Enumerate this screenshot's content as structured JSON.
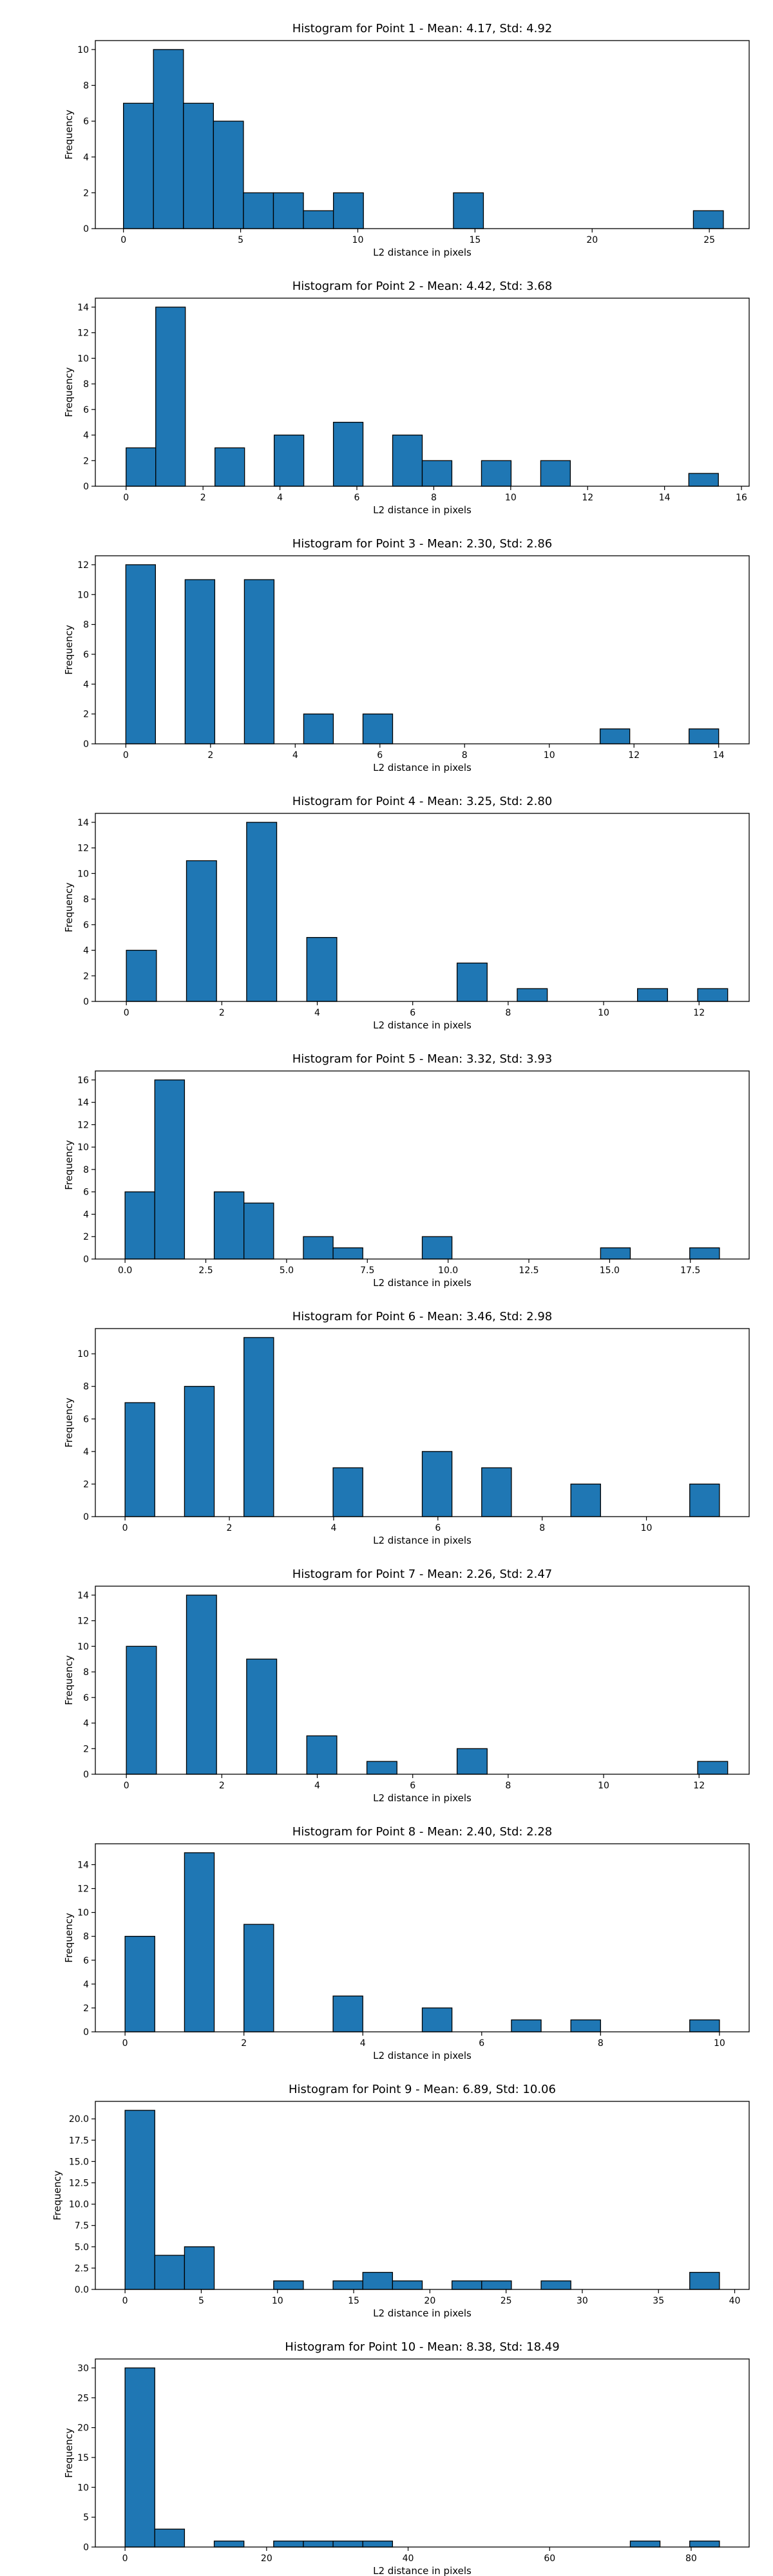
{
  "chart_data": [
    {
      "type": "bar",
      "title": "Histogram for Point 1 - Mean: 4.17, Std: 4.92",
      "xlabel": "L2 distance in pixels",
      "ylabel": "Frequency",
      "xlim": [
        -1.2,
        26.7
      ],
      "ylim": [
        0,
        10.5
      ],
      "xticks": [
        0,
        5,
        10,
        15,
        20,
        25
      ],
      "xtick_labels": [
        "0",
        "5",
        "10",
        "15",
        "20",
        "25"
      ],
      "yticks": [
        0,
        2,
        4,
        6,
        8,
        10
      ],
      "ytick_labels": [
        "0",
        "2",
        "4",
        "6",
        "8",
        "10"
      ],
      "bins": [
        [
          0,
          1.28,
          7
        ],
        [
          1.28,
          2.56,
          10
        ],
        [
          2.56,
          3.84,
          7
        ],
        [
          3.84,
          5.12,
          6
        ],
        [
          5.12,
          6.4,
          2
        ],
        [
          6.4,
          7.68,
          2
        ],
        [
          7.68,
          8.96,
          1
        ],
        [
          8.96,
          10.24,
          2
        ],
        [
          14.08,
          15.36,
          2
        ],
        [
          24.32,
          25.6,
          1
        ]
      ]
    },
    {
      "type": "bar",
      "title": "Histogram for Point 2 - Mean: 4.42, Std: 3.68",
      "xlabel": "L2 distance in pixels",
      "ylabel": "Frequency",
      "xlim": [
        -0.8,
        16.2
      ],
      "ylim": [
        0,
        14.7
      ],
      "xticks": [
        0,
        2,
        4,
        6,
        8,
        10,
        12,
        14,
        16
      ],
      "xtick_labels": [
        "0",
        "2",
        "4",
        "6",
        "8",
        "10",
        "12",
        "14",
        "16"
      ],
      "yticks": [
        0,
        2,
        4,
        6,
        8,
        10,
        12,
        14
      ],
      "ytick_labels": [
        "0",
        "2",
        "4",
        "6",
        "8",
        "10",
        "12",
        "14"
      ],
      "bins": [
        [
          0,
          0.77,
          3
        ],
        [
          0.77,
          1.54,
          14
        ],
        [
          2.31,
          3.08,
          3
        ],
        [
          3.85,
          4.62,
          4
        ],
        [
          5.39,
          6.16,
          5
        ],
        [
          6.93,
          7.7,
          4
        ],
        [
          7.7,
          8.47,
          2
        ],
        [
          9.24,
          10.01,
          2
        ],
        [
          10.78,
          11.55,
          2
        ],
        [
          14.63,
          15.4,
          1
        ]
      ]
    },
    {
      "type": "bar",
      "title": "Histogram for Point 3 - Mean: 2.30, Std: 2.86",
      "xlabel": "L2 distance in pixels",
      "ylabel": "Frequency",
      "xlim": [
        -0.72,
        14.72
      ],
      "ylim": [
        0,
        12.6
      ],
      "xticks": [
        0,
        2,
        4,
        6,
        8,
        10,
        12,
        14
      ],
      "xtick_labels": [
        "0",
        "2",
        "4",
        "6",
        "8",
        "10",
        "12",
        "14"
      ],
      "yticks": [
        0,
        2,
        4,
        6,
        8,
        10,
        12
      ],
      "ytick_labels": [
        "0",
        "2",
        "4",
        "6",
        "8",
        "10",
        "12"
      ],
      "bins": [
        [
          0,
          0.7,
          12
        ],
        [
          1.4,
          2.1,
          11
        ],
        [
          2.8,
          3.5,
          11
        ],
        [
          4.2,
          4.9,
          2
        ],
        [
          5.6,
          6.3,
          2
        ],
        [
          11.2,
          11.9,
          1
        ],
        [
          13.3,
          14.0,
          1
        ]
      ]
    },
    {
      "type": "bar",
      "title": "Histogram for Point 4 - Mean: 3.25, Std: 2.80",
      "xlabel": "L2 distance in pixels",
      "ylabel": "Frequency",
      "xlim": [
        -0.65,
        13.05
      ],
      "ylim": [
        0,
        14.7
      ],
      "xticks": [
        0,
        2,
        4,
        6,
        8,
        10,
        12
      ],
      "xtick_labels": [
        "0",
        "2",
        "4",
        "6",
        "8",
        "10",
        "12"
      ],
      "yticks": [
        0,
        2,
        4,
        6,
        8,
        10,
        12,
        14
      ],
      "ytick_labels": [
        "0",
        "2",
        "4",
        "6",
        "8",
        "10",
        "12",
        "14"
      ],
      "bins": [
        [
          0,
          0.63,
          4
        ],
        [
          1.26,
          1.89,
          11
        ],
        [
          2.52,
          3.15,
          14
        ],
        [
          3.78,
          4.41,
          5
        ],
        [
          6.93,
          7.56,
          3
        ],
        [
          8.19,
          8.82,
          1
        ],
        [
          10.71,
          11.34,
          1
        ],
        [
          11.97,
          12.6,
          1
        ]
      ]
    },
    {
      "type": "bar",
      "title": "Histogram for Point 5 - Mean: 3.32, Std: 3.93",
      "xlabel": "L2 distance in pixels",
      "ylabel": "Frequency",
      "xlim": [
        -0.92,
        19.32
      ],
      "ylim": [
        0,
        16.8
      ],
      "xticks": [
        0,
        2.5,
        5,
        7.5,
        10,
        12.5,
        15,
        17.5
      ],
      "xtick_labels": [
        "0.0",
        "2.5",
        "5.0",
        "7.5",
        "10.0",
        "12.5",
        "15.0",
        "17.5"
      ],
      "yticks": [
        0,
        2,
        4,
        6,
        8,
        10,
        12,
        14,
        16
      ],
      "ytick_labels": [
        "0",
        "2",
        "4",
        "6",
        "8",
        "10",
        "12",
        "14",
        "16"
      ],
      "bins": [
        [
          0,
          0.92,
          6
        ],
        [
          0.92,
          1.84,
          16
        ],
        [
          2.76,
          3.68,
          6
        ],
        [
          3.68,
          4.6,
          5
        ],
        [
          5.52,
          6.44,
          2
        ],
        [
          6.44,
          7.36,
          1
        ],
        [
          9.2,
          10.12,
          2
        ],
        [
          14.72,
          15.64,
          1
        ],
        [
          17.48,
          18.4,
          1
        ]
      ]
    },
    {
      "type": "bar",
      "title": "Histogram for Point 6 - Mean: 3.46, Std: 2.98",
      "xlabel": "L2 distance in pixels",
      "ylabel": "Frequency",
      "xlim": [
        -0.57,
        11.97
      ],
      "ylim": [
        0,
        11.55
      ],
      "xticks": [
        0,
        2,
        4,
        6,
        8,
        10
      ],
      "xtick_labels": [
        "0",
        "2",
        "4",
        "6",
        "8",
        "10"
      ],
      "yticks": [
        0,
        2,
        4,
        6,
        8,
        10
      ],
      "ytick_labels": [
        "0",
        "2",
        "4",
        "6",
        "8",
        "10"
      ],
      "bins": [
        [
          0,
          0.57,
          7
        ],
        [
          1.14,
          1.71,
          8
        ],
        [
          2.28,
          2.85,
          11
        ],
        [
          3.99,
          4.56,
          3
        ],
        [
          5.7,
          6.27,
          4
        ],
        [
          6.84,
          7.41,
          3
        ],
        [
          8.55,
          9.12,
          2
        ],
        [
          10.83,
          11.4,
          2
        ]
      ]
    },
    {
      "type": "bar",
      "title": "Histogram for Point 7 - Mean: 2.26, Std: 2.47",
      "xlabel": "L2 distance in pixels",
      "ylabel": "Frequency",
      "xlim": [
        -0.65,
        13.05
      ],
      "ylim": [
        0,
        14.7
      ],
      "xticks": [
        0,
        2,
        4,
        6,
        8,
        10,
        12
      ],
      "xtick_labels": [
        "0",
        "2",
        "4",
        "6",
        "8",
        "10",
        "12"
      ],
      "yticks": [
        0,
        2,
        4,
        6,
        8,
        10,
        12,
        14
      ],
      "ytick_labels": [
        "0",
        "2",
        "4",
        "6",
        "8",
        "10",
        "12",
        "14"
      ],
      "bins": [
        [
          0,
          0.63,
          10
        ],
        [
          1.26,
          1.89,
          14
        ],
        [
          2.52,
          3.15,
          9
        ],
        [
          3.78,
          4.41,
          3
        ],
        [
          5.04,
          5.67,
          1
        ],
        [
          6.93,
          7.56,
          2
        ],
        [
          11.97,
          12.6,
          1
        ]
      ]
    },
    {
      "type": "bar",
      "title": "Histogram for Point 8 - Mean: 2.40, Std: 2.28",
      "xlabel": "L2 distance in pixels",
      "ylabel": "Frequency",
      "xlim": [
        -0.5,
        10.5
      ],
      "ylim": [
        0,
        15.75
      ],
      "xticks": [
        0,
        2,
        4,
        6,
        8,
        10
      ],
      "xtick_labels": [
        "0",
        "2",
        "4",
        "6",
        "8",
        "10"
      ],
      "yticks": [
        0,
        2,
        4,
        6,
        8,
        10,
        12,
        14
      ],
      "ytick_labels": [
        "0",
        "2",
        "4",
        "6",
        "8",
        "10",
        "12",
        "14"
      ],
      "bins": [
        [
          0,
          0.5,
          8
        ],
        [
          1.0,
          1.5,
          15
        ],
        [
          2.0,
          2.5,
          9
        ],
        [
          3.5,
          4.0,
          3
        ],
        [
          5.0,
          5.5,
          2
        ],
        [
          6.5,
          7.0,
          1
        ],
        [
          7.5,
          8.0,
          1
        ],
        [
          9.5,
          10.0,
          1
        ]
      ]
    },
    {
      "type": "bar",
      "title": "Histogram for Point 9 - Mean: 6.89, Std: 10.06",
      "xlabel": "L2 distance in pixels",
      "ylabel": "Frequency",
      "xlim": [
        -1.95,
        40.95
      ],
      "ylim": [
        0,
        22.05
      ],
      "xticks": [
        0,
        5,
        10,
        15,
        20,
        25,
        30,
        35,
        40
      ],
      "xtick_labels": [
        "0",
        "5",
        "10",
        "15",
        "20",
        "25",
        "30",
        "35",
        "40"
      ],
      "yticks": [
        0,
        2.5,
        5,
        7.5,
        10,
        12.5,
        15,
        17.5,
        20
      ],
      "ytick_labels": [
        "0.0",
        "2.5",
        "5.0",
        "7.5",
        "10.0",
        "12.5",
        "15.0",
        "17.5",
        "20.0"
      ],
      "bins": [
        [
          0,
          1.95,
          21
        ],
        [
          1.95,
          3.9,
          4
        ],
        [
          3.9,
          5.85,
          5
        ],
        [
          9.75,
          11.7,
          1
        ],
        [
          13.65,
          15.6,
          1
        ],
        [
          15.6,
          17.55,
          2
        ],
        [
          17.55,
          19.5,
          1
        ],
        [
          21.45,
          23.4,
          1
        ],
        [
          23.4,
          25.35,
          1
        ],
        [
          27.3,
          29.25,
          1
        ],
        [
          37.05,
          39.0,
          2
        ]
      ]
    },
    {
      "type": "bar",
      "title": "Histogram for Point 10 - Mean: 8.38, Std: 18.49",
      "xlabel": "L2 distance in pixels",
      "ylabel": "Frequency",
      "xlim": [
        -4.2,
        88.2
      ],
      "ylim": [
        0,
        31.5
      ],
      "xticks": [
        0,
        20,
        40,
        60,
        80
      ],
      "xtick_labels": [
        "0",
        "20",
        "40",
        "60",
        "80"
      ],
      "yticks": [
        0,
        5,
        10,
        15,
        20,
        25,
        30
      ],
      "ytick_labels": [
        "0",
        "5",
        "10",
        "15",
        "20",
        "25",
        "30"
      ],
      "bins": [
        [
          0,
          4.2,
          30
        ],
        [
          4.2,
          8.4,
          3
        ],
        [
          12.6,
          16.8,
          1
        ],
        [
          21.0,
          25.2,
          1
        ],
        [
          25.2,
          29.4,
          1
        ],
        [
          29.4,
          33.6,
          1
        ],
        [
          33.6,
          37.8,
          1
        ],
        [
          71.4,
          75.6,
          1
        ],
        [
          79.8,
          84.0,
          1
        ]
      ]
    }
  ]
}
